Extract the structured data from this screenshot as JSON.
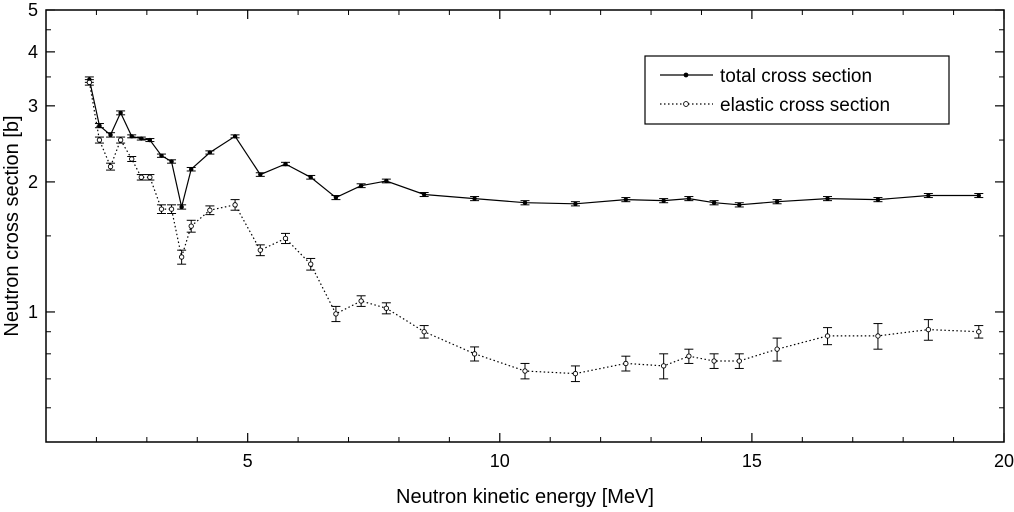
{
  "chart_data": {
    "type": "line",
    "xlabel": "Neutron kinetic energy   [MeV]",
    "ylabel": "Neutron cross section   [b]",
    "xlim": [
      1,
      20
    ],
    "ylim": [
      0.5,
      5
    ],
    "y_scale": "log",
    "grid": false,
    "legend_position": "top-right",
    "x_ticks": [
      {
        "value": 5,
        "label": "5"
      },
      {
        "value": 10,
        "label": "10"
      },
      {
        "value": 15,
        "label": "15"
      },
      {
        "value": 20,
        "label": "20"
      }
    ],
    "y_ticks": [
      {
        "value": 1,
        "label": "1"
      },
      {
        "value": 2,
        "label": "2"
      },
      {
        "value": 3,
        "label": "3"
      },
      {
        "value": 4,
        "label": "4"
      },
      {
        "value": 5,
        "label": "5"
      }
    ],
    "series": [
      {
        "name": "total cross section",
        "line_style": "solid",
        "marker": "filled-dot",
        "x": [
          1.86,
          2.06,
          2.28,
          2.48,
          2.7,
          2.89,
          3.06,
          3.29,
          3.49,
          3.69,
          3.88,
          4.25,
          4.75,
          5.25,
          5.75,
          6.25,
          6.75,
          7.25,
          7.75,
          8.5,
          9.5,
          10.5,
          11.5,
          12.5,
          13.25,
          13.75,
          14.25,
          14.75,
          15.5,
          16.5,
          17.5,
          18.5,
          19.5
        ],
        "y": [
          3.45,
          2.7,
          2.57,
          2.89,
          2.55,
          2.52,
          2.5,
          2.3,
          2.23,
          1.75,
          2.14,
          2.34,
          2.55,
          2.08,
          2.2,
          2.05,
          1.84,
          1.96,
          2.01,
          1.87,
          1.83,
          1.79,
          1.78,
          1.82,
          1.81,
          1.83,
          1.79,
          1.77,
          1.8,
          1.83,
          1.82,
          1.86,
          1.86
        ],
        "err": [
          0.05,
          0.03,
          0.03,
          0.03,
          0.02,
          0.02,
          0.02,
          0.02,
          0.02,
          0.02,
          0.02,
          0.02,
          0.02,
          0.02,
          0.02,
          0.02,
          0.02,
          0.02,
          0.02,
          0.02,
          0.02,
          0.02,
          0.02,
          0.02,
          0.02,
          0.02,
          0.02,
          0.02,
          0.02,
          0.02,
          0.02,
          0.02,
          0.02
        ]
      },
      {
        "name": "elastic cross section",
        "line_style": "dotted",
        "marker": "open-circle",
        "x": [
          1.86,
          2.06,
          2.28,
          2.48,
          2.7,
          2.89,
          3.06,
          3.29,
          3.49,
          3.69,
          3.88,
          4.25,
          4.75,
          5.25,
          5.75,
          6.25,
          6.75,
          7.25,
          7.75,
          8.5,
          9.5,
          10.5,
          11.5,
          12.5,
          13.25,
          13.75,
          14.25,
          14.75,
          15.5,
          16.5,
          17.5,
          18.5,
          19.5
        ],
        "y": [
          3.4,
          2.5,
          2.17,
          2.5,
          2.26,
          2.05,
          2.05,
          1.73,
          1.73,
          1.34,
          1.58,
          1.72,
          1.77,
          1.39,
          1.48,
          1.29,
          0.99,
          1.06,
          1.02,
          0.9,
          0.8,
          0.73,
          0.72,
          0.76,
          0.75,
          0.79,
          0.77,
          0.77,
          0.82,
          0.88,
          0.88,
          0.91,
          0.9
        ],
        "err": [
          0.05,
          0.04,
          0.04,
          0.04,
          0.03,
          0.03,
          0.03,
          0.04,
          0.04,
          0.05,
          0.05,
          0.04,
          0.05,
          0.04,
          0.04,
          0.04,
          0.04,
          0.03,
          0.03,
          0.03,
          0.03,
          0.03,
          0.03,
          0.03,
          0.05,
          0.03,
          0.03,
          0.03,
          0.05,
          0.04,
          0.06,
          0.05,
          0.03
        ]
      }
    ]
  }
}
